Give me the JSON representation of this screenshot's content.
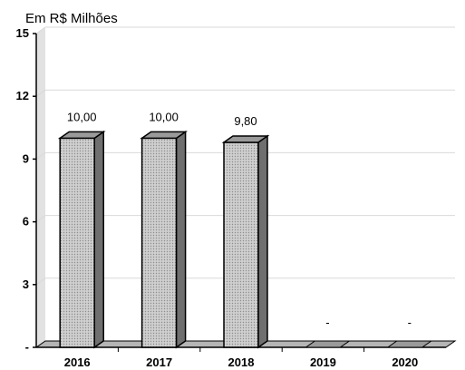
{
  "chart_data": {
    "type": "bar",
    "unit_label": "Em R$ Milhões",
    "categories": [
      "2016",
      "2017",
      "2018",
      "2019",
      "2020"
    ],
    "values": [
      10.0,
      10.0,
      9.8,
      0,
      0
    ],
    "value_labels": [
      "10,00",
      "10,00",
      "9,80",
      "-",
      "-"
    ],
    "yticks": [
      0,
      3,
      6,
      9,
      12,
      15
    ],
    "ytick_labels": [
      "-",
      "3",
      "6",
      "9",
      "12",
      "15"
    ],
    "ylim": [
      0,
      15
    ],
    "grid": true,
    "style": "3d",
    "colors": {
      "bar_face": "#c4c4c4",
      "bar_side": "#6f6f6f",
      "bar_top": "#9a9a9a",
      "wall": "#ffffff",
      "floor": "#b5b5b5",
      "grid": "#d9d9d9"
    }
  }
}
